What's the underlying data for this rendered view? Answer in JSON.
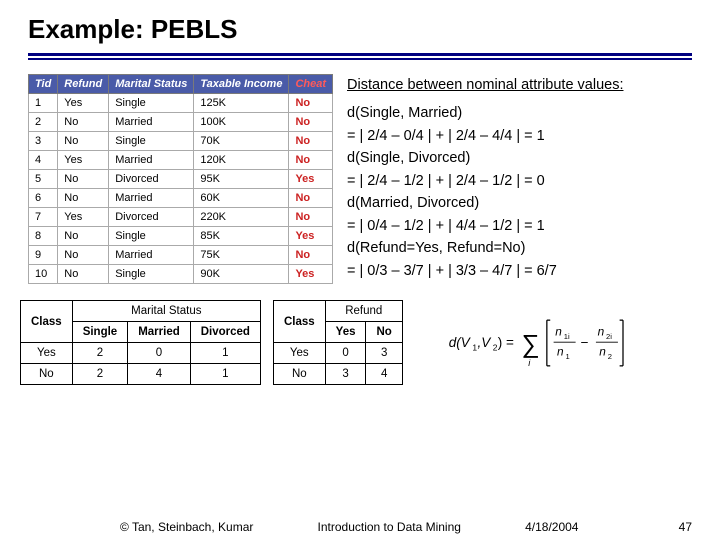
{
  "title": "Example: PEBLS",
  "rule_color": "#000080",
  "data_table": {
    "header_bg": "#4a5ba8",
    "header_fg": "#ffffff",
    "cheat_header_fg": "#ff5a5a",
    "cheat_cell_fg": "#cc2222",
    "columns": [
      "Tid",
      "Refund",
      "Marital Status",
      "Taxable Income",
      "Cheat"
    ],
    "rows": [
      [
        "1",
        "Yes",
        "Single",
        "125K",
        "No"
      ],
      [
        "2",
        "No",
        "Married",
        "100K",
        "No"
      ],
      [
        "3",
        "No",
        "Single",
        "70K",
        "No"
      ],
      [
        "4",
        "Yes",
        "Married",
        "120K",
        "No"
      ],
      [
        "5",
        "No",
        "Divorced",
        "95K",
        "Yes"
      ],
      [
        "6",
        "No",
        "Married",
        "60K",
        "No"
      ],
      [
        "7",
        "Yes",
        "Divorced",
        "220K",
        "No"
      ],
      [
        "8",
        "No",
        "Single",
        "85K",
        "Yes"
      ],
      [
        "9",
        "No",
        "Married",
        "75K",
        "No"
      ],
      [
        "10",
        "No",
        "Single",
        "90K",
        "Yes"
      ]
    ]
  },
  "calc": {
    "header": "Distance between nominal attribute values:",
    "lines": [
      "d(Single, Married)",
      "=  | 2/4 – 0/4 | + | 2/4 – 4/4 | =  1",
      "d(Single, Divorced)",
      "=  | 2/4 – 1/2 | + | 2/4 – 1/2 | =  0",
      "d(Married, Divorced)",
      "=  | 0/4 – 1/2 | + | 4/4 – 1/2 | =  1",
      "d(Refund=Yes, Refund=No)",
      "= | 0/3 – 3/7 | + | 3/3 – 4/7 | = 6/7"
    ]
  },
  "marital_table": {
    "class_label": "Class",
    "group_label": "Marital Status",
    "cols": [
      "Single",
      "Married",
      "Divorced"
    ],
    "rows": [
      {
        "label": "Yes",
        "vals": [
          "2",
          "0",
          "1"
        ]
      },
      {
        "label": "No",
        "vals": [
          "2",
          "4",
          "1"
        ]
      }
    ]
  },
  "refund_table": {
    "class_label": "Class",
    "group_label": "Refund",
    "cols": [
      "Yes",
      "No"
    ],
    "rows": [
      {
        "label": "Yes",
        "vals": [
          "0",
          "3"
        ]
      },
      {
        "label": "No",
        "vals": [
          "3",
          "4"
        ]
      }
    ]
  },
  "formula": {
    "lhs": "d(V₁,V₂) =",
    "sigma_sub": "i",
    "frac1_top": "n₁ᵢ",
    "frac1_bot": "n₁",
    "minus": "−",
    "frac2_top": "n₂ᵢ",
    "frac2_bot": "n₂"
  },
  "footer": {
    "left": "© Tan, Steinbach, Kumar",
    "center": "Introduction to Data Mining",
    "right": "4/18/2004",
    "page": "47"
  }
}
